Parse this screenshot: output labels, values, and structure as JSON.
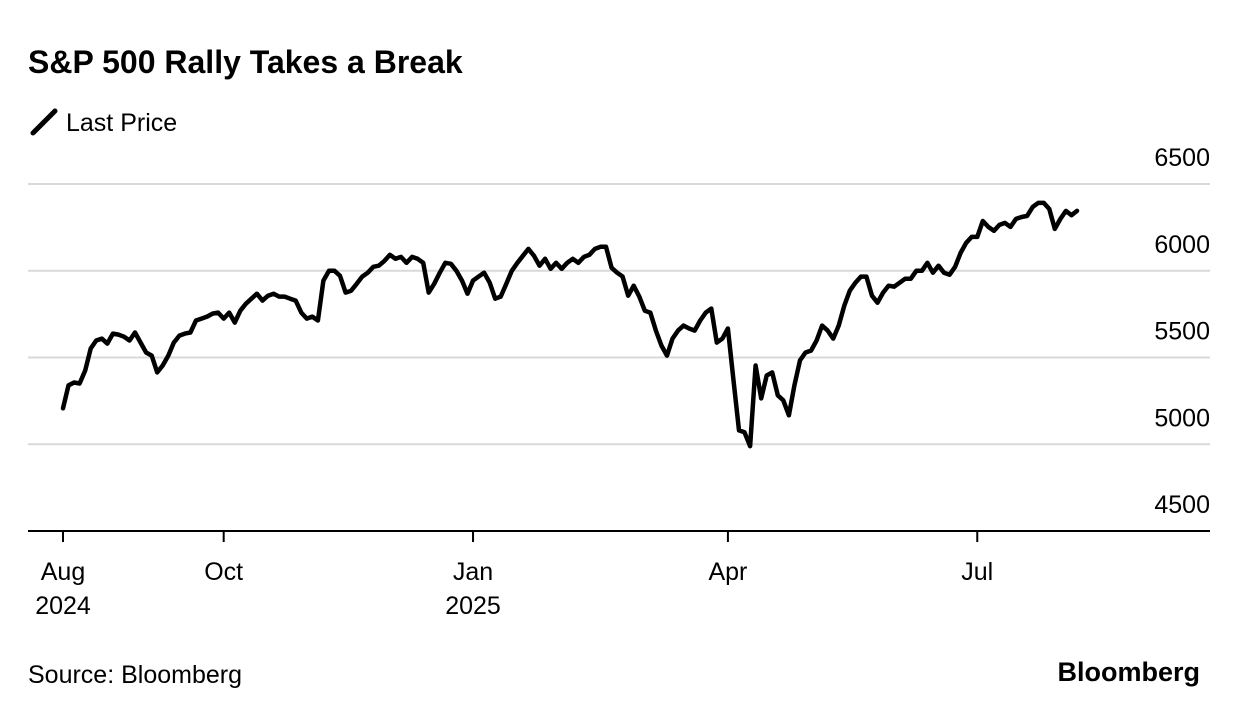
{
  "chart_data": {
    "type": "line",
    "title": "S&P 500 Rally Takes a Break",
    "source": "Source: Bloomberg",
    "brand": "Bloomberg",
    "x": [
      "2024-08",
      "2024-08",
      "2024-08",
      "2024-08",
      "2024-08",
      "2024-08",
      "2024-08",
      "2024-08",
      "2024-08",
      "2024-08",
      "2024-08",
      "2024-08",
      "2024-08",
      "2024-08",
      "2024-08",
      "2024-08",
      "2024-09",
      "2024-09",
      "2024-09",
      "2024-09",
      "2024-09",
      "2024-09",
      "2024-09",
      "2024-09",
      "2024-09",
      "2024-09",
      "2024-09",
      "2024-09",
      "2024-09",
      "2024-10",
      "2024-10",
      "2024-10",
      "2024-10",
      "2024-10",
      "2024-10",
      "2024-10",
      "2024-10",
      "2024-10",
      "2024-10",
      "2024-10",
      "2024-10",
      "2024-10",
      "2024-10",
      "2024-10",
      "2024-11",
      "2024-11",
      "2024-11",
      "2024-11",
      "2024-11",
      "2024-11",
      "2024-11",
      "2024-11",
      "2024-11",
      "2024-11",
      "2024-11",
      "2024-11",
      "2024-11",
      "2024-11",
      "2024-12",
      "2024-12",
      "2024-12",
      "2024-12",
      "2024-12",
      "2024-12",
      "2024-12",
      "2024-12",
      "2024-12",
      "2024-12",
      "2024-12",
      "2024-12",
      "2024-12",
      "2024-12",
      "2024-12",
      "2024-12",
      "2025-01",
      "2025-01",
      "2025-01",
      "2025-01",
      "2025-01",
      "2025-01",
      "2025-01",
      "2025-01",
      "2025-01",
      "2025-01",
      "2025-01",
      "2025-01",
      "2025-02",
      "2025-02",
      "2025-02",
      "2025-02",
      "2025-02",
      "2025-02",
      "2025-02",
      "2025-02",
      "2025-02",
      "2025-02",
      "2025-02",
      "2025-02",
      "2025-03",
      "2025-03",
      "2025-03",
      "2025-03",
      "2025-03",
      "2025-03",
      "2025-03",
      "2025-03",
      "2025-03",
      "2025-03",
      "2025-03",
      "2025-03",
      "2025-03",
      "2025-03",
      "2025-03",
      "2025-03",
      "2025-03",
      "2025-03",
      "2025-03",
      "2025-03",
      "2025-03",
      "2025-03",
      "2025-04",
      "2025-04",
      "2025-04",
      "2025-04",
      "2025-04",
      "2025-04",
      "2025-04",
      "2025-04",
      "2025-04",
      "2025-04",
      "2025-04",
      "2025-04",
      "2025-04",
      "2025-04",
      "2025-04",
      "2025-04",
      "2025-04",
      "2025-04",
      "2025-05",
      "2025-05",
      "2025-05",
      "2025-05",
      "2025-05",
      "2025-05",
      "2025-05",
      "2025-05",
      "2025-05",
      "2025-05",
      "2025-05",
      "2025-05",
      "2025-05",
      "2025-05",
      "2025-06",
      "2025-06",
      "2025-06",
      "2025-06",
      "2025-06",
      "2025-06",
      "2025-06",
      "2025-06",
      "2025-06",
      "2025-06",
      "2025-06",
      "2025-06",
      "2025-06",
      "2025-07",
      "2025-07",
      "2025-07",
      "2025-07",
      "2025-07",
      "2025-07",
      "2025-07",
      "2025-07",
      "2025-07",
      "2025-07",
      "2025-07",
      "2025-07",
      "2025-07",
      "2025-07",
      "2025-07",
      "2025-07",
      "2025-07",
      "2025-07",
      "2025-07"
    ],
    "series": [
      {
        "name": "Last Price",
        "color": "#000000",
        "values": [
          5207,
          5339,
          5356,
          5350,
          5425,
          5552,
          5598,
          5609,
          5580,
          5638,
          5632,
          5620,
          5598,
          5644,
          5586,
          5529,
          5511,
          5414,
          5454,
          5511,
          5586,
          5626,
          5638,
          5644,
          5713,
          5724,
          5736,
          5753,
          5759,
          5724,
          5759,
          5701,
          5770,
          5810,
          5839,
          5868,
          5828,
          5856,
          5868,
          5851,
          5851,
          5839,
          5828,
          5759,
          5724,
          5736,
          5713,
          5943,
          6000,
          6000,
          5971,
          5874,
          5885,
          5925,
          5966,
          5989,
          6023,
          6029,
          6057,
          6092,
          6069,
          6080,
          6046,
          6080,
          6069,
          6046,
          5874,
          5925,
          5989,
          6046,
          6040,
          6000,
          5943,
          5868,
          5943,
          5966,
          5989,
          5931,
          5839,
          5851,
          5925,
          6000,
          6046,
          6086,
          6126,
          6086,
          6029,
          6069,
          6011,
          6046,
          6011,
          6046,
          6069,
          6046,
          6080,
          6092,
          6126,
          6138,
          6138,
          6017,
          5989,
          5966,
          5856,
          5914,
          5851,
          5770,
          5759,
          5655,
          5569,
          5511,
          5609,
          5655,
          5684,
          5667,
          5655,
          5713,
          5759,
          5782,
          5586,
          5609,
          5667,
          5368,
          5080,
          5069,
          4989,
          5454,
          5264,
          5396,
          5414,
          5282,
          5253,
          5167,
          5339,
          5483,
          5529,
          5540,
          5598,
          5684,
          5655,
          5609,
          5684,
          5799,
          5885,
          5931,
          5966,
          5966,
          5856,
          5816,
          5874,
          5914,
          5908,
          5931,
          5954,
          5954,
          6000,
          6000,
          6046,
          5989,
          6029,
          5989,
          5977,
          6023,
          6103,
          6161,
          6195,
          6195,
          6287,
          6253,
          6230,
          6264,
          6276,
          6253,
          6299,
          6310,
          6316,
          6368,
          6391,
          6391,
          6356,
          6241,
          6299,
          6345,
          6320,
          6345
        ]
      }
    ],
    "xticks": [
      {
        "value": "2024-08",
        "label": "Aug\n2024"
      },
      {
        "value": "2024-10",
        "label": "Oct"
      },
      {
        "value": "2025-01",
        "label": "Jan\n2025"
      },
      {
        "value": "2025-04",
        "label": "Apr"
      },
      {
        "value": "2025-07",
        "label": "Jul"
      }
    ],
    "ylim": [
      4500,
      6500
    ],
    "yticks": [
      4500,
      5000,
      5500,
      6000,
      6500
    ],
    "grid": true,
    "legend": "top-left"
  }
}
